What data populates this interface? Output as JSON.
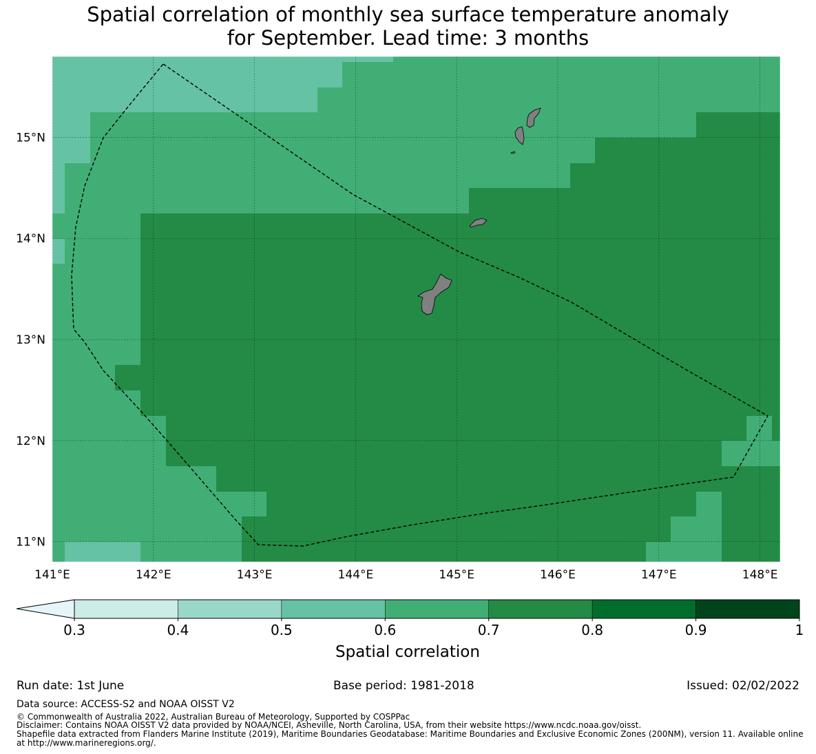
{
  "title": {
    "line1": "Spatial correlation of monthly sea surface temperature anomaly",
    "line2": "for September. Lead time: 3 months"
  },
  "map": {
    "lon_labels": [
      "141°E",
      "142°E",
      "143°E",
      "144°E",
      "145°E",
      "146°E",
      "147°E",
      "148°E"
    ],
    "lat_labels": [
      "15°N",
      "14°N",
      "13°N",
      "12°N",
      "11°N"
    ],
    "lon_range": [
      141.0,
      148.2
    ],
    "lat_range": [
      10.8,
      15.8
    ],
    "grid_resolution_deg": 0.25,
    "field_classes": {
      "background": "0.6-0.7",
      "regions": [
        {
          "class": "0.5-0.6",
          "area": "north-west corner band"
        },
        {
          "class": "0.7-0.8",
          "area": "central and south-east interior"
        },
        {
          "class": "0.6-0.7",
          "area": "west margin, north band and south-east notches"
        }
      ]
    },
    "land_color": "#808080",
    "boundary_style": "dashed"
  },
  "colorbar": {
    "ticks": [
      "0.3",
      "0.4",
      "0.5",
      "0.6",
      "0.7",
      "0.8",
      "0.9",
      "1"
    ],
    "colors": [
      "#ccece6",
      "#99d8c9",
      "#66c2a4",
      "#41ae76",
      "#238b45",
      "#006d2c",
      "#00441b"
    ],
    "extend_color": "#e5f5f9",
    "label": "Spatial correlation"
  },
  "footer": {
    "run_date": "Run date: 1st June",
    "base_period": "Base period: 1981-2018",
    "issued": "Issued: 02/02/2022",
    "data_source": "Data source: ACCESS-S2 and NOAA OISST V2",
    "copyright": "© Commonwealth of Australia 2022, Australian Bureau of Meteorology, Supported by COSPPac",
    "disclaimer": "Disclaimer: Contains NOAA OISST V2 data provided by NOAA/NCEI, Asheville, North Carolina, USA, from their website https://www.ncdc.noaa.gov/oisst.",
    "shapefile_line1": "Shapefile data extracted from Flanders Marine Institute (2019), Maritime Boundaries Geodatabase: Maritime Boundaries and Exclusive Economic Zones (200NM), version 11. Available online",
    "shapefile_line2": "at http://www.marineregions.org/."
  }
}
